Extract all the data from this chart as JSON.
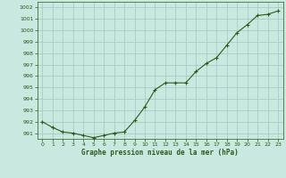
{
  "x": [
    0,
    1,
    2,
    3,
    4,
    5,
    6,
    7,
    8,
    9,
    10,
    11,
    12,
    13,
    14,
    15,
    16,
    17,
    18,
    19,
    20,
    21,
    22,
    23
  ],
  "y": [
    992.0,
    991.5,
    991.1,
    991.0,
    990.8,
    990.6,
    990.8,
    991.0,
    991.1,
    992.1,
    993.3,
    994.8,
    995.4,
    995.4,
    995.4,
    996.4,
    997.1,
    997.6,
    998.7,
    999.8,
    1000.5,
    1001.3,
    1001.4,
    1001.7
  ],
  "line_color": "#2d5a1b",
  "marker_color": "#2d5a1b",
  "bg_color": "#c8e8e0",
  "grid_color": "#a0c8c0",
  "xlabel": "Graphe pression niveau de la mer (hPa)",
  "xlabel_color": "#2d5a1b",
  "tick_color": "#2d5a1b",
  "ylim": [
    990.5,
    1002.5
  ],
  "yticks": [
    991,
    992,
    993,
    994,
    995,
    996,
    997,
    998,
    999,
    1000,
    1001,
    1002
  ],
  "xticks": [
    0,
    1,
    2,
    3,
    4,
    5,
    6,
    7,
    8,
    9,
    10,
    11,
    12,
    13,
    14,
    15,
    16,
    17,
    18,
    19,
    20,
    21,
    22,
    23
  ],
  "xlim": [
    -0.5,
    23.5
  ]
}
